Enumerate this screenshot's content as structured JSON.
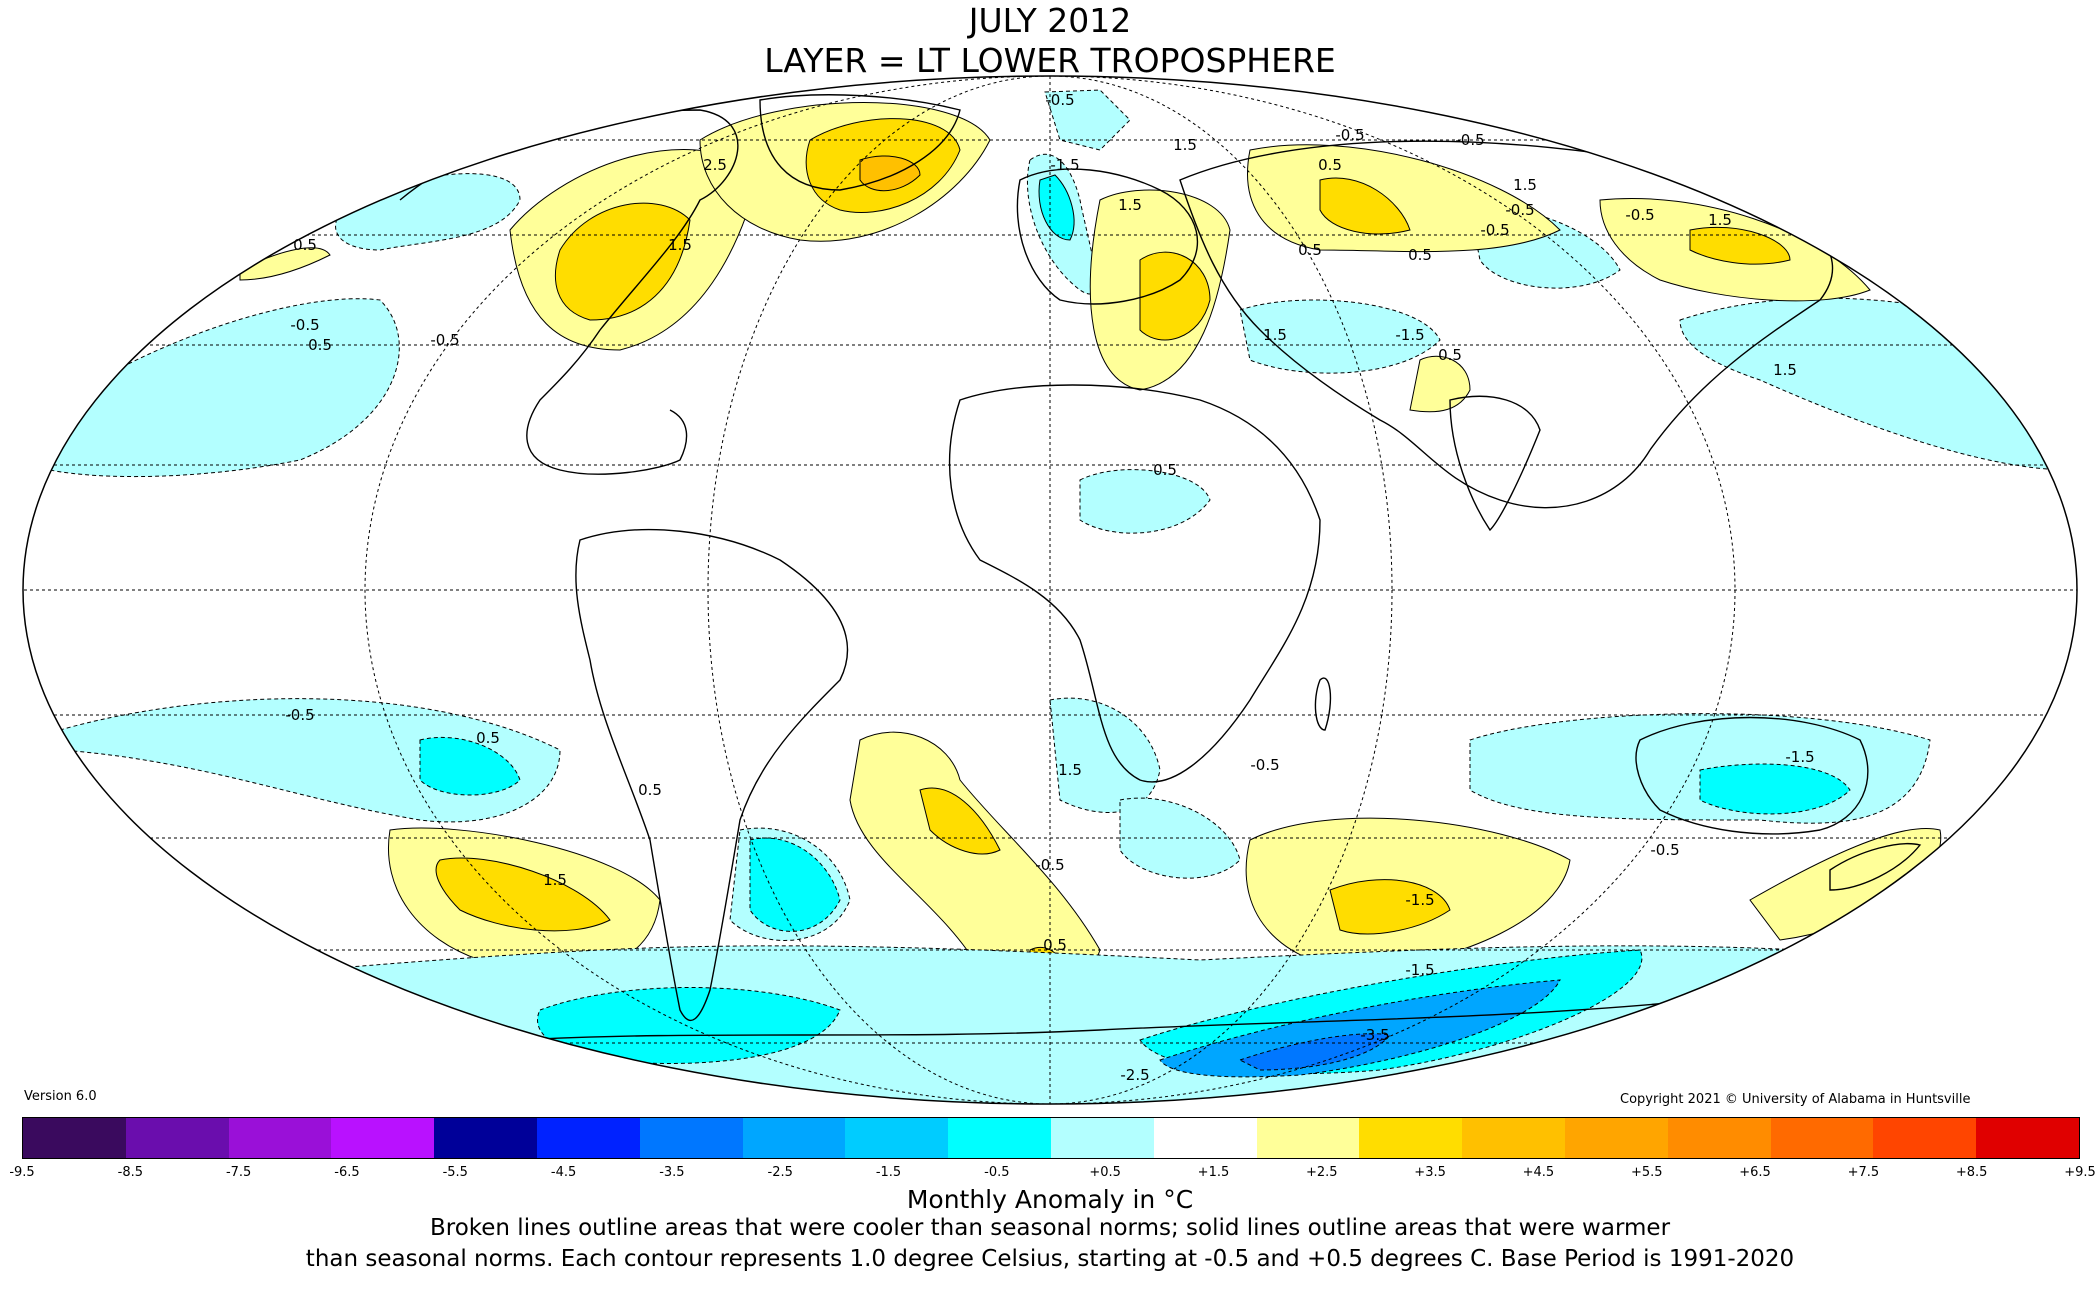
{
  "title": {
    "line1": "JULY 2012",
    "line2": "LAYER = LT LOWER TROPOSPHERE"
  },
  "version": "Version 6.0",
  "copyright": "Copyright 2021 © University of Alabama in Huntsville",
  "colorbar": {
    "label": "Monthly Anomaly in °C",
    "ticks": [
      "-9.5",
      "-8.5",
      "-7.5",
      "-6.5",
      "-5.5",
      "-4.5",
      "-3.5",
      "-2.5",
      "-1.5",
      "-0.5",
      "+0.5",
      "+1.5",
      "+2.5",
      "+3.5",
      "+4.5",
      "+5.5",
      "+6.5",
      "+7.5",
      "+8.5",
      "+9.5"
    ],
    "colors": [
      "#3a0a5e",
      "#6a0dad",
      "#9a10d8",
      "#b911ff",
      "#000099",
      "#0022ff",
      "#0077ff",
      "#00a6ff",
      "#00ccff",
      "#00ffff",
      "#b3ffff",
      "#ffffff",
      "#ffff99",
      "#ffdd00",
      "#ffc000",
      "#ffa500",
      "#ff8c00",
      "#ff6a00",
      "#ff4500",
      "#e00000",
      "#b00000"
    ]
  },
  "notes": {
    "line1": "Broken lines outline areas that were cooler than seasonal norms; solid lines outline areas that were warmer",
    "line2": "than seasonal norms. Each contour represents 1.0 degree Celsius, starting at -0.5 and +0.5 degrees C. Base Period is 1991-2020"
  },
  "map": {
    "projection": "Mollweide",
    "contour_labels": [
      {
        "text": "0.5"
      },
      {
        "text": "-0.5"
      },
      {
        "text": "-0.5"
      },
      {
        "text": "1.5"
      },
      {
        "text": "1.5"
      },
      {
        "text": "2.5"
      },
      {
        "text": "-0.5"
      },
      {
        "text": "-1.5"
      },
      {
        "text": "1.5"
      },
      {
        "text": "0.5"
      },
      {
        "text": "1.5"
      },
      {
        "text": "-0.5"
      },
      {
        "text": "0.5"
      },
      {
        "text": "-0.5"
      },
      {
        "text": "-0.5"
      },
      {
        "text": "-0.5"
      },
      {
        "text": "-1.5"
      },
      {
        "text": "0.5"
      },
      {
        "text": "1.5"
      },
      {
        "text": "-0.5"
      },
      {
        "text": "1.5"
      },
      {
        "text": "0.5"
      },
      {
        "text": "0.5"
      },
      {
        "text": "1.5"
      },
      {
        "text": "0.5"
      },
      {
        "text": "-0.5"
      },
      {
        "text": "0.5"
      },
      {
        "text": "1.5"
      },
      {
        "text": "-0.5"
      },
      {
        "text": "0.5"
      },
      {
        "text": "-1.5"
      },
      {
        "text": "-0.5"
      },
      {
        "text": "-1.5"
      },
      {
        "text": "-0.5"
      },
      {
        "text": "0.5"
      },
      {
        "text": "-2.5"
      },
      {
        "text": "-3.5"
      },
      {
        "text": "-1.5"
      },
      {
        "text": "1.5"
      }
    ]
  }
}
